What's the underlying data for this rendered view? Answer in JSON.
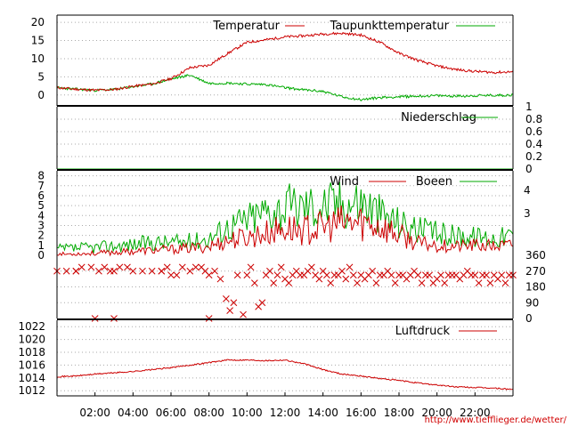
{
  "colors": {
    "temperature": "#cc0000",
    "dewpoint": "#00aa00",
    "grid": "#aaaaaa"
  },
  "source_text": "http://www.tiefflieger.de/wetter/",
  "chart_data": [
    {
      "type": "line",
      "series": [
        {
          "name": "Temperatur",
          "color": "#cc0000",
          "points": [
            [
              0,
              2.0
            ],
            [
              1,
              1.6
            ],
            [
              2,
              1.3
            ],
            [
              3,
              1.5
            ],
            [
              4,
              2.4
            ],
            [
              5,
              3.0
            ],
            [
              6,
              4.5
            ],
            [
              7,
              7.5
            ],
            [
              8,
              8.2
            ],
            [
              9,
              11.5
            ],
            [
              10,
              14.5
            ],
            [
              11,
              15.2
            ],
            [
              12,
              16.0
            ],
            [
              13,
              16.3
            ],
            [
              14,
              16.8
            ],
            [
              15,
              17.0
            ],
            [
              16,
              16.5
            ],
            [
              17,
              14.5
            ],
            [
              18,
              11.5
            ],
            [
              19,
              9.5
            ],
            [
              20,
              8.0
            ],
            [
              21,
              7.0
            ],
            [
              22,
              6.5
            ],
            [
              23,
              6.2
            ],
            [
              24,
              6.4
            ]
          ]
        },
        {
          "name": "Taupunkttemperatur",
          "color": "#00aa00",
          "points": [
            [
              0,
              2.0
            ],
            [
              1,
              1.6
            ],
            [
              2,
              1.3
            ],
            [
              3,
              1.5
            ],
            [
              4,
              2.3
            ],
            [
              5,
              3.0
            ],
            [
              6,
              4.4
            ],
            [
              7,
              5.5
            ],
            [
              8,
              3.2
            ],
            [
              9,
              3.3
            ],
            [
              10,
              3.0
            ],
            [
              11,
              2.9
            ],
            [
              12,
              2.0
            ],
            [
              13,
              1.4
            ],
            [
              14,
              1.0
            ],
            [
              15,
              -0.5
            ],
            [
              16,
              -1.3
            ],
            [
              17,
              -0.7
            ],
            [
              18,
              -0.5
            ],
            [
              19,
              -0.3
            ],
            [
              20,
              -0.2
            ],
            [
              21,
              -0.3
            ],
            [
              22,
              -0.2
            ],
            [
              23,
              -0.1
            ],
            [
              24,
              0.0
            ]
          ]
        }
      ],
      "y_ticks": [
        0,
        5,
        10,
        15,
        20
      ],
      "ylim": [
        -3,
        22
      ]
    },
    {
      "type": "line",
      "series": [
        {
          "name": "Niederschlag",
          "color": "#00aa00",
          "points": [
            [
              0,
              0
            ],
            [
              24,
              0
            ]
          ]
        }
      ],
      "y_ticks": [
        "0",
        "0.2",
        "0.4",
        "0.6",
        "0.8",
        "1"
      ],
      "ylim": [
        0,
        1
      ]
    },
    {
      "type": "line",
      "series": [
        {
          "name": "Wind",
          "color": "#cc0000",
          "points": [
            [
              0,
              0.1
            ],
            [
              2,
              0.2
            ],
            [
              4,
              0.4
            ],
            [
              5,
              0.5
            ],
            [
              6,
              0.6
            ],
            [
              7,
              0.7
            ],
            [
              8,
              0.9
            ],
            [
              9,
              1.5
            ],
            [
              10,
              1.8
            ],
            [
              11,
              2.2
            ],
            [
              12,
              2.7
            ],
            [
              13,
              2.5
            ],
            [
              14,
              2.8
            ],
            [
              15,
              3.2
            ],
            [
              16,
              3.3
            ],
            [
              17,
              3.0
            ],
            [
              18,
              2.0
            ],
            [
              19,
              1.2
            ],
            [
              20,
              1.0
            ],
            [
              21,
              0.9
            ],
            [
              22,
              1.0
            ],
            [
              23,
              0.9
            ],
            [
              24,
              1.0
            ]
          ]
        },
        {
          "name": "Boeen",
          "color": "#00aa00",
          "points": [
            [
              0,
              0.6
            ],
            [
              2,
              0.8
            ],
            [
              4,
              1.1
            ],
            [
              5,
              1.3
            ],
            [
              6,
              1.3
            ],
            [
              7,
              1.4
            ],
            [
              8,
              1.7
            ],
            [
              9,
              2.9
            ],
            [
              10,
              3.6
            ],
            [
              11,
              4.5
            ],
            [
              12,
              4.8
            ],
            [
              13,
              5.0
            ],
            [
              14,
              5.1
            ],
            [
              15,
              5.3
            ],
            [
              16,
              5.5
            ],
            [
              17,
              4.2
            ],
            [
              18,
              3.3
            ],
            [
              19,
              2.6
            ],
            [
              20,
              2.2
            ],
            [
              21,
              2.0
            ],
            [
              22,
              1.9
            ],
            [
              23,
              1.8
            ],
            [
              24,
              2.0
            ]
          ]
        }
      ],
      "y_ticks": [
        0,
        1,
        2,
        3,
        4,
        5,
        6,
        7,
        8
      ],
      "y2_ticks": [
        "3",
        "4"
      ],
      "ylim": [
        0,
        8.5
      ]
    },
    {
      "type": "scatter",
      "series": [
        {
          "color": "#cc0000",
          "points": [
            [
              0,
              270
            ],
            [
              0.5,
              270
            ],
            [
              1,
              270
            ],
            [
              1,
              270
            ],
            [
              1.3,
              292
            ],
            [
              1.8,
              292
            ],
            [
              2.2,
              270
            ],
            [
              2.5,
              292
            ],
            [
              2.8,
              270
            ],
            [
              3,
              270
            ],
            [
              3.3,
              292
            ],
            [
              3.7,
              292
            ],
            [
              4,
              270
            ],
            [
              4.5,
              270
            ],
            [
              5,
              270
            ],
            [
              5.5,
              270
            ],
            [
              5.5,
              270
            ],
            [
              5.8,
              292
            ],
            [
              6,
              247
            ],
            [
              6.3,
              247
            ],
            [
              6.6,
              292
            ],
            [
              7,
              270
            ],
            [
              7.3,
              292
            ],
            [
              7.6,
              292
            ],
            [
              7.8,
              270
            ],
            [
              8,
              247
            ],
            [
              8.3,
              270
            ],
            [
              8.6,
              225
            ],
            [
              8.9,
              112
            ],
            [
              9.1,
              45
            ],
            [
              9.3,
              90
            ],
            [
              9.5,
              247
            ],
            [
              9.8,
              22
            ],
            [
              10,
              247
            ],
            [
              10.2,
              292
            ],
            [
              10.4,
              202
            ],
            [
              10.6,
              67
            ],
            [
              10.8,
              90
            ],
            [
              11,
              247
            ],
            [
              11.2,
              270
            ],
            [
              11.4,
              202
            ],
            [
              11.6,
              247
            ],
            [
              11.8,
              292
            ],
            [
              12,
              225
            ],
            [
              12.2,
              202
            ],
            [
              12.4,
              247
            ],
            [
              12.6,
              270
            ],
            [
              12.8,
              247
            ],
            [
              13,
              247
            ],
            [
              13.2,
              270
            ],
            [
              13.4,
              292
            ],
            [
              13.6,
              247
            ],
            [
              13.8,
              225
            ],
            [
              14,
              270
            ],
            [
              14.2,
              247
            ],
            [
              14.4,
              202
            ],
            [
              14.6,
              247
            ],
            [
              14.8,
              247
            ],
            [
              15,
              270
            ],
            [
              15.2,
              225
            ],
            [
              15.4,
              292
            ],
            [
              15.6,
              247
            ],
            [
              15.8,
              202
            ],
            [
              16,
              247
            ],
            [
              16.2,
              225
            ],
            [
              16.4,
              247
            ],
            [
              16.6,
              270
            ],
            [
              16.8,
              202
            ],
            [
              17,
              247
            ],
            [
              17.2,
              247
            ],
            [
              17.4,
              270
            ],
            [
              17.6,
              247
            ],
            [
              17.8,
              202
            ],
            [
              18,
              247
            ],
            [
              18.2,
              247
            ],
            [
              18.4,
              225
            ],
            [
              18.6,
              247
            ],
            [
              18.8,
              270
            ],
            [
              19,
              247
            ],
            [
              19.2,
              202
            ],
            [
              19.4,
              247
            ],
            [
              19.6,
              247
            ],
            [
              19.8,
              202
            ],
            [
              20,
              225
            ],
            [
              20.2,
              247
            ],
            [
              20.4,
              202
            ],
            [
              20.6,
              247
            ],
            [
              20.8,
              247
            ],
            [
              21,
              247
            ],
            [
              21.2,
              225
            ],
            [
              21.4,
              247
            ],
            [
              21.6,
              270
            ],
            [
              21.8,
              247
            ],
            [
              22,
              247
            ],
            [
              22.2,
              202
            ],
            [
              22.4,
              247
            ],
            [
              22.6,
              247
            ],
            [
              22.8,
              202
            ],
            [
              23,
              247
            ],
            [
              23.2,
              225
            ],
            [
              23.4,
              247
            ],
            [
              23.6,
              202
            ],
            [
              23.8,
              247
            ],
            [
              24,
              247
            ],
            [
              2,
              0
            ],
            [
              3,
              0
            ],
            [
              8,
              0
            ]
          ]
        }
      ],
      "y2_ticks": [
        0,
        90,
        180,
        270,
        360
      ],
      "ylim": [
        0,
        360
      ]
    },
    {
      "type": "line",
      "series": [
        {
          "name": "Luftdruck",
          "color": "#cc0000",
          "points": [
            [
              0,
              1014.2
            ],
            [
              1,
              1014.3
            ],
            [
              2,
              1014.6
            ],
            [
              3,
              1014.8
            ],
            [
              4,
              1015.0
            ],
            [
              5,
              1015.3
            ],
            [
              6,
              1015.6
            ],
            [
              7,
              1016.0
            ],
            [
              8,
              1016.4
            ],
            [
              9,
              1016.8
            ],
            [
              10,
              1016.8
            ],
            [
              11,
              1016.7
            ],
            [
              12,
              1016.8
            ],
            [
              13,
              1016.2
            ],
            [
              14,
              1015.3
            ],
            [
              15,
              1014.6
            ],
            [
              16,
              1014.3
            ],
            [
              17,
              1013.9
            ],
            [
              18,
              1013.6
            ],
            [
              19,
              1013.2
            ],
            [
              20,
              1012.9
            ],
            [
              21,
              1012.6
            ],
            [
              22,
              1012.5
            ],
            [
              23,
              1012.4
            ],
            [
              24,
              1012.2
            ]
          ]
        }
      ],
      "y_ticks": [
        1012,
        1014,
        1016,
        1018,
        1020,
        1022
      ],
      "ylim": [
        1011.2,
        1023
      ]
    }
  ],
  "x_ticks": [
    "02:00",
    "04:00",
    "06:00",
    "08:00",
    "10:00",
    "12:00",
    "14:00",
    "16:00",
    "18:00",
    "20:00",
    "22:00"
  ],
  "x_tick_hours": [
    2,
    4,
    6,
    8,
    10,
    12,
    14,
    16,
    18,
    20,
    22
  ],
  "xlim": [
    0,
    24
  ]
}
